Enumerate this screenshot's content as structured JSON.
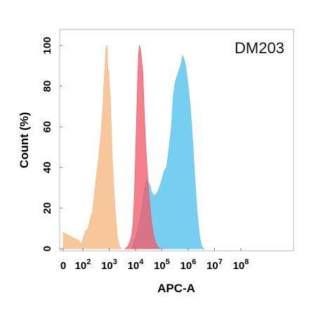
{
  "chart_data": {
    "type": "area",
    "annotation": "DM203",
    "xlabel": "APC-A",
    "ylabel": "Count  (%)",
    "xscale": "log",
    "xlim": [
      0,
      100000000
    ],
    "ylim": [
      0,
      110
    ],
    "x_ticks": [
      {
        "value": 0,
        "base": "0",
        "exp": ""
      },
      {
        "value": 100,
        "base": "10",
        "exp": "2"
      },
      {
        "value": 1000,
        "base": "10",
        "exp": "3"
      },
      {
        "value": 10000,
        "base": "10",
        "exp": "4"
      },
      {
        "value": 100000,
        "base": "10",
        "exp": "5"
      },
      {
        "value": 1000000,
        "base": "10",
        "exp": "6"
      },
      {
        "value": 10000000,
        "base": "10",
        "exp": "7"
      },
      {
        "value": 100000000,
        "base": "10",
        "exp": "8"
      }
    ],
    "y_ticks": [
      0,
      20,
      40,
      60,
      80,
      100
    ],
    "grid": false,
    "series": [
      {
        "color": "#f6c08f",
        "points": [
          [
            0,
            8
          ],
          [
            40,
            4
          ],
          [
            70,
            2
          ],
          [
            100,
            5
          ],
          [
            130,
            9
          ],
          [
            160,
            10
          ],
          [
            190,
            15
          ],
          [
            230,
            18
          ],
          [
            280,
            28
          ],
          [
            320,
            35
          ],
          [
            380,
            42
          ],
          [
            420,
            48
          ],
          [
            480,
            55
          ],
          [
            520,
            63
          ],
          [
            580,
            70
          ],
          [
            620,
            80
          ],
          [
            680,
            88
          ],
          [
            720,
            95
          ],
          [
            760,
            100
          ],
          [
            800,
            97
          ],
          [
            840,
            100
          ],
          [
            880,
            90
          ],
          [
            920,
            86
          ],
          [
            970,
            88
          ],
          [
            1000,
            82
          ],
          [
            1100,
            75
          ],
          [
            1200,
            60
          ],
          [
            1300,
            45
          ],
          [
            1500,
            30
          ],
          [
            1800,
            14
          ],
          [
            2100,
            5
          ],
          [
            2500,
            1
          ],
          [
            3000,
            0
          ]
        ]
      },
      {
        "color": "#67c9ee",
        "points": [
          [
            7000,
            0
          ],
          [
            9000,
            4
          ],
          [
            11000,
            8
          ],
          [
            14000,
            14
          ],
          [
            18000,
            22
          ],
          [
            22000,
            30
          ],
          [
            26000,
            34
          ],
          [
            30000,
            33
          ],
          [
            36000,
            31
          ],
          [
            40000,
            28
          ],
          [
            45000,
            27
          ],
          [
            52000,
            26
          ],
          [
            60000,
            27
          ],
          [
            70000,
            28
          ],
          [
            80000,
            30
          ],
          [
            100000,
            34
          ],
          [
            120000,
            38
          ],
          [
            150000,
            40
          ],
          [
            180000,
            48
          ],
          [
            230000,
            60
          ],
          [
            270000,
            75
          ],
          [
            320000,
            82
          ],
          [
            380000,
            85
          ],
          [
            450000,
            88
          ],
          [
            520000,
            90
          ],
          [
            600000,
            95
          ],
          [
            700000,
            93
          ],
          [
            800000,
            90
          ],
          [
            900000,
            85
          ],
          [
            1000000,
            80
          ],
          [
            1200000,
            70
          ],
          [
            1500000,
            52
          ],
          [
            1800000,
            34
          ],
          [
            2200000,
            18
          ],
          [
            2700000,
            6
          ],
          [
            3300000,
            1
          ],
          [
            4000000,
            0
          ]
        ]
      },
      {
        "color": "#f25b6a",
        "points": [
          [
            4000,
            0
          ],
          [
            5000,
            1
          ],
          [
            6000,
            3
          ],
          [
            7000,
            6
          ],
          [
            8000,
            12
          ],
          [
            9000,
            25
          ],
          [
            10000,
            45
          ],
          [
            11000,
            65
          ],
          [
            12000,
            83
          ],
          [
            13000,
            95
          ],
          [
            14000,
            100
          ],
          [
            15500,
            98
          ],
          [
            17000,
            93
          ],
          [
            19000,
            86
          ],
          [
            21000,
            70
          ],
          [
            24000,
            52
          ],
          [
            28000,
            38
          ],
          [
            33000,
            25
          ],
          [
            40000,
            14
          ],
          [
            48000,
            7
          ],
          [
            58000,
            3
          ],
          [
            70000,
            1
          ],
          [
            85000,
            0
          ]
        ]
      }
    ]
  }
}
